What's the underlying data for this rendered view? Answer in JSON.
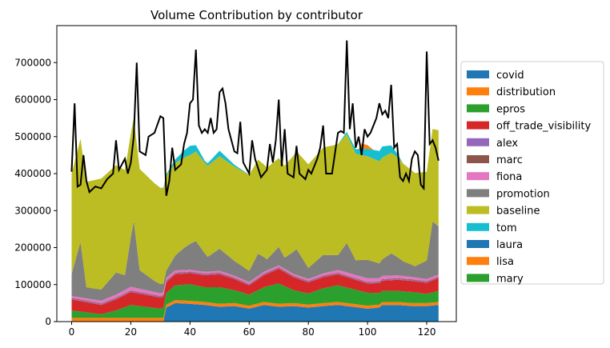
{
  "chart_data": {
    "type": "area",
    "title": "Volume Contribution by contributor",
    "xlabel": "",
    "ylabel": "",
    "xlim": [
      -5,
      130
    ],
    "ylim": [
      0,
      800000
    ],
    "x_ticks": [
      0,
      20,
      40,
      60,
      80,
      100,
      120
    ],
    "y_ticks": [
      0,
      100000,
      200000,
      300000,
      400000,
      500000,
      600000,
      700000
    ],
    "legend_position": "right",
    "grid": false,
    "n_points": 125,
    "series": [
      {
        "name": "covid",
        "color": "#1f77b4",
        "anchors": [
          [
            0,
            0
          ],
          [
            31,
            0
          ],
          [
            32,
            38000
          ],
          [
            35,
            50000
          ],
          [
            40,
            48000
          ],
          [
            45,
            45000
          ],
          [
            50,
            40000
          ],
          [
            55,
            42000
          ],
          [
            60,
            35000
          ],
          [
            65,
            45000
          ],
          [
            70,
            40000
          ],
          [
            75,
            42000
          ],
          [
            80,
            38000
          ],
          [
            85,
            42000
          ],
          [
            90,
            45000
          ],
          [
            95,
            40000
          ],
          [
            100,
            35000
          ],
          [
            104,
            38000
          ],
          [
            105,
            45000
          ],
          [
            110,
            45000
          ],
          [
            115,
            42000
          ],
          [
            120,
            42000
          ],
          [
            124,
            45000
          ]
        ]
      },
      {
        "name": "distribution",
        "color": "#ff7f0e",
        "anchors": [
          [
            0,
            10000
          ],
          [
            31,
            10000
          ],
          [
            32,
            8000
          ],
          [
            124,
            8000
          ]
        ]
      },
      {
        "name": "epros",
        "color": "#2ca02c",
        "anchors": [
          [
            0,
            20000
          ],
          [
            5,
            15000
          ],
          [
            10,
            10000
          ],
          [
            15,
            20000
          ],
          [
            20,
            35000
          ],
          [
            25,
            30000
          ],
          [
            30,
            25000
          ],
          [
            35,
            40000
          ],
          [
            40,
            45000
          ],
          [
            45,
            40000
          ],
          [
            50,
            45000
          ],
          [
            55,
            35000
          ],
          [
            60,
            30000
          ],
          [
            65,
            40000
          ],
          [
            70,
            55000
          ],
          [
            75,
            35000
          ],
          [
            80,
            30000
          ],
          [
            85,
            40000
          ],
          [
            90,
            45000
          ],
          [
            95,
            40000
          ],
          [
            100,
            35000
          ],
          [
            105,
            30000
          ],
          [
            110,
            30000
          ],
          [
            115,
            30000
          ],
          [
            120,
            25000
          ],
          [
            124,
            30000
          ]
        ]
      },
      {
        "name": "off_trade_visibility",
        "color": "#d62728",
        "anchors": [
          [
            0,
            30000
          ],
          [
            10,
            25000
          ],
          [
            20,
            35000
          ],
          [
            30,
            30000
          ],
          [
            40,
            30000
          ],
          [
            50,
            35000
          ],
          [
            60,
            25000
          ],
          [
            70,
            40000
          ],
          [
            80,
            30000
          ],
          [
            90,
            30000
          ],
          [
            100,
            25000
          ],
          [
            110,
            30000
          ],
          [
            120,
            30000
          ],
          [
            124,
            35000
          ]
        ]
      },
      {
        "name": "alex",
        "color": "#9467bd",
        "anchors": [
          [
            0,
            2000
          ],
          [
            124,
            2000
          ]
        ]
      },
      {
        "name": "marc",
        "color": "#8c564b",
        "anchors": [
          [
            0,
            2000
          ],
          [
            124,
            2000
          ]
        ]
      },
      {
        "name": "fiona",
        "color": "#e377c2",
        "anchors": [
          [
            0,
            5000
          ],
          [
            20,
            10000
          ],
          [
            40,
            5000
          ],
          [
            60,
            5000
          ],
          [
            80,
            5000
          ],
          [
            100,
            10000
          ],
          [
            124,
            5000
          ]
        ]
      },
      {
        "name": "promotion",
        "color": "#7f7f7f",
        "anchors": [
          [
            0,
            60000
          ],
          [
            3,
            150000
          ],
          [
            5,
            30000
          ],
          [
            10,
            30000
          ],
          [
            15,
            60000
          ],
          [
            18,
            40000
          ],
          [
            21,
            180000
          ],
          [
            23,
            50000
          ],
          [
            28,
            30000
          ],
          [
            32,
            20000
          ],
          [
            38,
            60000
          ],
          [
            42,
            80000
          ],
          [
            46,
            40000
          ],
          [
            50,
            60000
          ],
          [
            55,
            40000
          ],
          [
            60,
            30000
          ],
          [
            63,
            60000
          ],
          [
            66,
            30000
          ],
          [
            70,
            50000
          ],
          [
            72,
            30000
          ],
          [
            76,
            70000
          ],
          [
            80,
            30000
          ],
          [
            85,
            50000
          ],
          [
            90,
            40000
          ],
          [
            93,
            80000
          ],
          [
            96,
            40000
          ],
          [
            100,
            50000
          ],
          [
            104,
            40000
          ],
          [
            108,
            60000
          ],
          [
            112,
            40000
          ],
          [
            116,
            30000
          ],
          [
            120,
            50000
          ],
          [
            122,
            150000
          ],
          [
            124,
            130000
          ]
        ]
      },
      {
        "name": "baseline",
        "color": "#bcbd22",
        "anchors": [
          [
            0,
            270000
          ],
          [
            10,
            300000
          ],
          [
            20,
            280000
          ],
          [
            30,
            260000
          ],
          [
            40,
            240000
          ],
          [
            50,
            250000
          ],
          [
            60,
            260000
          ],
          [
            70,
            240000
          ],
          [
            80,
            280000
          ],
          [
            90,
            300000
          ],
          [
            100,
            280000
          ],
          [
            110,
            270000
          ],
          [
            120,
            240000
          ],
          [
            124,
            260000
          ]
        ]
      },
      {
        "name": "tom",
        "color": "#17becf",
        "anchors": [
          [
            0,
            0
          ],
          [
            30,
            0
          ],
          [
            35,
            10000
          ],
          [
            40,
            25000
          ],
          [
            45,
            5000
          ],
          [
            50,
            15000
          ],
          [
            55,
            5000
          ],
          [
            60,
            0
          ],
          [
            90,
            0
          ],
          [
            100,
            20000
          ],
          [
            105,
            30000
          ],
          [
            108,
            20000
          ],
          [
            112,
            0
          ],
          [
            124,
            0
          ]
        ]
      },
      {
        "name": "laura",
        "color": "#1f77b4",
        "anchors": [
          [
            0,
            0
          ],
          [
            124,
            0
          ]
        ]
      },
      {
        "name": "lisa",
        "color": "#ff7f0e",
        "anchors": [
          [
            0,
            0
          ],
          [
            97,
            0
          ],
          [
            98,
            15000
          ],
          [
            100,
            10000
          ],
          [
            102,
            0
          ],
          [
            124,
            0
          ]
        ]
      },
      {
        "name": "mary",
        "color": "#2ca02c",
        "anchors": [
          [
            0,
            0
          ],
          [
            124,
            0
          ]
        ]
      }
    ],
    "total_line": {
      "color": "#000000",
      "anchors": [
        [
          0,
          405000
        ],
        [
          1,
          590000
        ],
        [
          2,
          365000
        ],
        [
          3,
          370000
        ],
        [
          4,
          450000
        ],
        [
          5,
          380000
        ],
        [
          6,
          350000
        ],
        [
          8,
          365000
        ],
        [
          10,
          360000
        ],
        [
          12,
          385000
        ],
        [
          14,
          400000
        ],
        [
          15,
          490000
        ],
        [
          16,
          410000
        ],
        [
          18,
          440000
        ],
        [
          19,
          400000
        ],
        [
          20,
          430000
        ],
        [
          21,
          500000
        ],
        [
          22,
          700000
        ],
        [
          23,
          460000
        ],
        [
          25,
          450000
        ],
        [
          26,
          500000
        ],
        [
          28,
          510000
        ],
        [
          30,
          555000
        ],
        [
          31,
          550000
        ],
        [
          32,
          340000
        ],
        [
          33,
          380000
        ],
        [
          34,
          470000
        ],
        [
          35,
          410000
        ],
        [
          37,
          425000
        ],
        [
          38,
          480000
        ],
        [
          39,
          510000
        ],
        [
          40,
          590000
        ],
        [
          41,
          600000
        ],
        [
          42,
          735000
        ],
        [
          43,
          530000
        ],
        [
          44,
          510000
        ],
        [
          45,
          520000
        ],
        [
          46,
          510000
        ],
        [
          47,
          550000
        ],
        [
          48,
          510000
        ],
        [
          49,
          520000
        ],
        [
          50,
          620000
        ],
        [
          51,
          630000
        ],
        [
          52,
          590000
        ],
        [
          53,
          520000
        ],
        [
          54,
          490000
        ],
        [
          55,
          460000
        ],
        [
          56,
          455000
        ],
        [
          57,
          540000
        ],
        [
          58,
          430000
        ],
        [
          60,
          400000
        ],
        [
          61,
          490000
        ],
        [
          62,
          440000
        ],
        [
          64,
          390000
        ],
        [
          65,
          400000
        ],
        [
          66,
          410000
        ],
        [
          67,
          480000
        ],
        [
          68,
          430000
        ],
        [
          69,
          490000
        ],
        [
          70,
          600000
        ],
        [
          71,
          420000
        ],
        [
          72,
          520000
        ],
        [
          73,
          400000
        ],
        [
          75,
          390000
        ],
        [
          76,
          475000
        ],
        [
          77,
          400000
        ],
        [
          79,
          385000
        ],
        [
          80,
          410000
        ],
        [
          81,
          400000
        ],
        [
          83,
          440000
        ],
        [
          84,
          470000
        ],
        [
          85,
          530000
        ],
        [
          86,
          400000
        ],
        [
          88,
          400000
        ],
        [
          90,
          510000
        ],
        [
          91,
          515000
        ],
        [
          92,
          510000
        ],
        [
          93,
          760000
        ],
        [
          94,
          520000
        ],
        [
          95,
          590000
        ],
        [
          96,
          470000
        ],
        [
          97,
          500000
        ],
        [
          98,
          450000
        ],
        [
          99,
          520000
        ],
        [
          100,
          500000
        ],
        [
          101,
          510000
        ],
        [
          103,
          550000
        ],
        [
          104,
          590000
        ],
        [
          105,
          560000
        ],
        [
          106,
          570000
        ],
        [
          107,
          550000
        ],
        [
          108,
          640000
        ],
        [
          109,
          470000
        ],
        [
          110,
          480000
        ],
        [
          111,
          390000
        ],
        [
          112,
          380000
        ],
        [
          113,
          400000
        ],
        [
          114,
          380000
        ],
        [
          115,
          440000
        ],
        [
          116,
          460000
        ],
        [
          117,
          450000
        ],
        [
          118,
          370000
        ],
        [
          119,
          360000
        ],
        [
          120,
          730000
        ],
        [
          121,
          480000
        ],
        [
          122,
          490000
        ],
        [
          123,
          470000
        ],
        [
          124,
          435000
        ]
      ]
    }
  }
}
